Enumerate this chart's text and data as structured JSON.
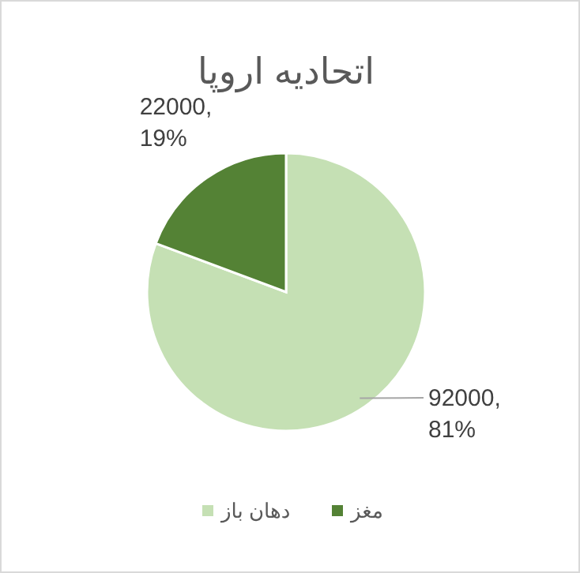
{
  "chart_data": {
    "type": "pie",
    "title": "اتحادیه اروپا",
    "categories": [
      "دهان باز",
      "مغز"
    ],
    "values": [
      92000,
      22000
    ],
    "colors": [
      "#c5e0b4",
      "#548235"
    ],
    "value_labels": [
      "92000, 81%",
      "22000, 19%"
    ],
    "legend": "bottom"
  }
}
